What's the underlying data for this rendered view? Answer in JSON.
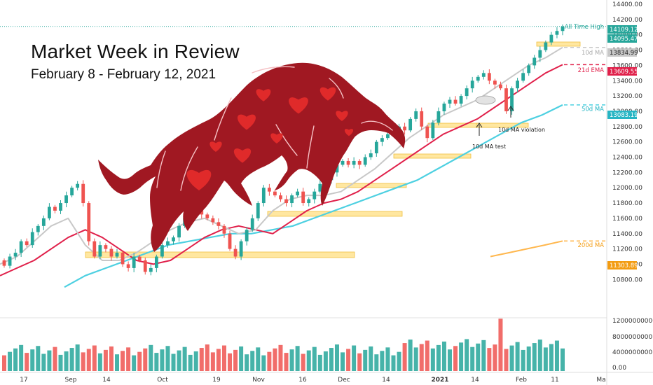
{
  "header": {
    "title": "Market Week in Review",
    "subtitle": "February 8 - February 12, 2021"
  },
  "colors": {
    "up": "#26a69a",
    "down": "#ef5350",
    "ma10": "#c8c8c8",
    "ema21": "#e0204a",
    "ma50": "#4dd0e1",
    "ma200": "#ffb74d",
    "zone": "#ffe7a0",
    "bull": "#a01822",
    "heart": "#e02a2a"
  },
  "icons": {
    "bull": "bull-illustration",
    "hearts": "heart-icon"
  },
  "chart_data": {
    "type": "candlestick",
    "y_axis": {
      "range": [
        10700,
        14450
      ],
      "ticks": [
        10800,
        11000,
        11200,
        11400,
        11600,
        11800,
        12000,
        12200,
        12400,
        12600,
        12800,
        13000,
        13200,
        13400,
        13600,
        13800,
        14000,
        14200,
        14400
      ]
    },
    "volume_axis": {
      "range": [
        0,
        12500000000
      ],
      "ticks": [
        "12000000000.00",
        "8000000000.00",
        "4000000000.00",
        "0.00"
      ]
    },
    "x_axis": {
      "labels": [
        "17",
        "Sep",
        "14",
        "Oct",
        "19",
        "Nov",
        "16",
        "Dec",
        "14",
        "2021",
        "14",
        "Feb",
        "11",
        "Ma"
      ]
    },
    "price_labels": [
      {
        "text": "14109.12",
        "value": 14109.12,
        "color": "#26a69a"
      },
      {
        "text": "14095.47",
        "value": 14095.47,
        "color": "#26a69a"
      },
      {
        "text": "13834.99",
        "value": 13834.99,
        "color": "#c8c8c8"
      },
      {
        "text": "13609.55",
        "value": 13609.55,
        "color": "#e0204a"
      },
      {
        "text": "13083.19",
        "value": 13083.19,
        "color": "#26b5c4"
      },
      {
        "text": "11303.89",
        "value": 11303.89,
        "color": "#f39c12"
      }
    ],
    "ma_labels": [
      {
        "text": "All Time High",
        "value": 14109,
        "color": "#26a69a"
      },
      {
        "text": "10d MA",
        "value": 13770,
        "color": "#aaaaaa"
      },
      {
        "text": "21d EMA",
        "value": 13540,
        "color": "#e0204a"
      },
      {
        "text": "50d MA",
        "value": 13030,
        "color": "#26b5c4"
      },
      {
        "text": "200d MA",
        "value": 11250,
        "color": "#f39c12"
      }
    ],
    "annotations": [
      "10d MA test",
      "10d MA violation"
    ],
    "series": {
      "open": [
        11050,
        10980,
        11100,
        11150,
        11300,
        11250,
        11420,
        11500,
        11600,
        11750,
        11700,
        11800,
        11900,
        12000,
        12050,
        11800,
        11300,
        11100,
        11250,
        11200,
        11100,
        11150,
        11000,
        10950,
        11100,
        11050,
        10900,
        10950,
        11100,
        11250,
        11300,
        11350,
        11500,
        11600,
        11750,
        11800,
        11650,
        11600,
        11550,
        11500,
        11400,
        11200,
        11100,
        11300,
        11450,
        11600,
        11800,
        12000,
        11950,
        11900,
        11850,
        11800,
        11900,
        11950,
        11800,
        11850,
        11950,
        12050,
        12100,
        12200,
        12300,
        12350,
        12300,
        12350,
        12300,
        12400,
        12450,
        12600,
        12650,
        12700,
        12750,
        12800,
        12750,
        12900,
        13000,
        12800,
        12650,
        12850,
        13000,
        13100,
        13150,
        13100,
        13200,
        13300,
        13400,
        13450,
        13500,
        13400,
        13350,
        13300,
        13000,
        13300,
        13400,
        13500,
        13600,
        13700,
        13800,
        13900,
        14000,
        14050
      ],
      "close": [
        10980,
        11100,
        11150,
        11300,
        11250,
        11420,
        11500,
        11600,
        11750,
        11700,
        11800,
        11900,
        12000,
        12050,
        11800,
        11300,
        11100,
        11250,
        11200,
        11100,
        11150,
        11000,
        10950,
        11100,
        11050,
        10900,
        10950,
        11100,
        11250,
        11300,
        11350,
        11500,
        11600,
        11750,
        11800,
        11650,
        11600,
        11550,
        11500,
        11400,
        11200,
        11100,
        11300,
        11450,
        11600,
        11800,
        12000,
        11950,
        11900,
        11850,
        11800,
        11900,
        11950,
        11800,
        11850,
        11950,
        12050,
        12100,
        12200,
        12300,
        12350,
        12300,
        12350,
        12300,
        12400,
        12450,
        12600,
        12650,
        12700,
        12750,
        12800,
        12750,
        12900,
        13000,
        12800,
        12650,
        12850,
        13000,
        13100,
        13150,
        13100,
        13200,
        13300,
        13400,
        13450,
        13500,
        13400,
        13350,
        13300,
        13000,
        13300,
        13400,
        13500,
        13600,
        13700,
        13800,
        13900,
        14000,
        14050,
        14109
      ]
    },
    "moving_averages": {
      "ma10": [
        11000,
        11100,
        11300,
        11500,
        11600,
        11250,
        11050,
        11050,
        11150,
        11300,
        11450,
        11550,
        11600,
        11500,
        11400,
        11450,
        11700,
        11850,
        11900,
        11900,
        11950,
        12100,
        12250,
        12450,
        12650,
        12800,
        12950,
        13050,
        13150,
        13300,
        13450,
        13600,
        13700,
        13834.99
      ],
      "ema21": [
        10850,
        10950,
        11050,
        11200,
        11350,
        11450,
        11350,
        11200,
        11050,
        11000,
        11050,
        11200,
        11350,
        11450,
        11500,
        11450,
        11400,
        11550,
        11700,
        11800,
        11850,
        11950,
        12100,
        12250,
        12400,
        12550,
        12700,
        12800,
        12900,
        13050,
        13200,
        13350,
        13500,
        13609.55
      ],
      "ma50": [
        10700,
        10850,
        10950,
        11050,
        11150,
        11250,
        11300,
        11350,
        11400,
        11400,
        11450,
        11500,
        11600,
        11700,
        11800,
        11900,
        12000,
        12100,
        12250,
        12400,
        12550,
        12700,
        12850,
        12950,
        13083.19
      ],
      "ma200": [
        11100,
        11150,
        11200,
        11250,
        11303.89
      ]
    }
  }
}
